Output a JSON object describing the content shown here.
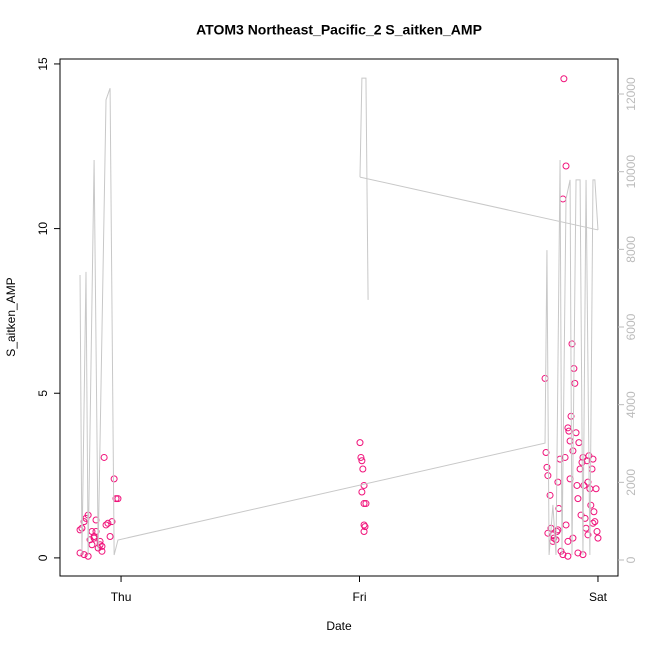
{
  "chart_data": {
    "type": "scatter",
    "title": "ATOM3 Northeast_Pacific_2 S_aitken_AMP",
    "x_label": "Date",
    "y_label": "S_aitken_AMP",
    "xlim": [
      -0.256,
      2.084
    ],
    "xticks": [
      {
        "value": 0,
        "label": "Thu"
      },
      {
        "value": 1,
        "label": "Fri"
      },
      {
        "value": 2,
        "label": "Sat"
      }
    ],
    "ylim": [
      -0.55,
      15.15
    ],
    "yticks": [
      0,
      5,
      10,
      15
    ],
    "y2lim": [
      -412,
      12902
    ],
    "y2ticks": [
      0,
      2000,
      4000,
      6000,
      8000,
      10000,
      12000
    ],
    "series": [
      {
        "color": "#f0127a",
        "x": [
          -0.172,
          -0.164,
          -0.155,
          -0.147,
          -0.138,
          -0.13,
          -0.122,
          -0.113,
          -0.105,
          -0.096,
          -0.088,
          -0.08,
          -0.071,
          -0.063,
          -0.055,
          -0.046,
          -0.038,
          -0.029,
          -0.021,
          -0.013,
          -0.172,
          -0.155,
          -0.138,
          -0.122,
          -0.105,
          -0.088,
          -0.08,
          -0.113,
          1.002,
          1.006,
          1.01,
          1.014,
          1.019,
          1.01,
          1.019,
          1.027,
          1.019,
          1.023,
          1.019,
          1.778,
          1.782,
          1.786,
          1.79,
          1.799,
          1.803,
          1.811,
          1.815,
          1.824,
          1.828,
          1.832,
          1.836,
          1.841,
          1.845,
          1.853,
          1.857,
          1.862,
          1.866,
          1.866,
          1.874,
          1.874,
          1.878,
          1.883,
          1.883,
          1.887,
          1.891,
          1.895,
          1.899,
          1.903,
          1.908,
          1.912,
          1.916,
          1.92,
          1.925,
          1.929,
          1.933,
          1.937,
          1.941,
          1.946,
          1.95,
          1.954,
          1.958,
          1.962,
          1.966,
          1.97,
          1.975,
          1.979,
          1.983,
          1.987,
          1.992,
          1.996,
          2.0,
          1.79,
          1.811,
          1.832,
          1.853,
          1.874,
          1.895,
          1.916,
          1.937,
          1.958,
          1.979
        ],
        "values": [
          0.85,
          0.9,
          1.1,
          1.2,
          1.3,
          0.55,
          0.4,
          0.65,
          1.15,
          0.3,
          0.4,
          0.2,
          3.05,
          1.0,
          1.05,
          0.65,
          1.1,
          2.4,
          1.8,
          1.8,
          0.15,
          0.1,
          0.05,
          0.8,
          0.8,
          0.5,
          0.35,
          0.6,
          3.5,
          3.05,
          2.95,
          2.7,
          2.2,
          2.0,
          1.65,
          1.65,
          1.0,
          0.95,
          0.8,
          5.45,
          3.2,
          2.75,
          2.5,
          1.9,
          0.9,
          0.7,
          0.6,
          0.55,
          0.8,
          2.3,
          1.5,
          3.0,
          0.2,
          10.9,
          14.55,
          3.05,
          11.9,
          1.0,
          0.5,
          3.95,
          3.85,
          3.55,
          2.4,
          4.3,
          6.5,
          3.25,
          5.75,
          5.3,
          3.8,
          2.2,
          1.8,
          3.5,
          2.7,
          1.3,
          2.9,
          3.05,
          2.2,
          1.2,
          0.9,
          2.95,
          2.3,
          3.1,
          2.1,
          1.6,
          2.7,
          3.0,
          1.4,
          1.1,
          2.1,
          0.8,
          0.6,
          0.75,
          0.5,
          0.85,
          0.1,
          0.05,
          0.6,
          0.15,
          0.1,
          0.7,
          1.05
        ]
      },
      {
        "color": "#c8c8c8",
        "axis": "y2",
        "line": true,
        "x": [
          -0.172,
          -0.164,
          -0.147,
          -0.138,
          -0.113,
          -0.096,
          -0.063,
          -0.046,
          -0.029,
          -0.013,
          1.778,
          1.786,
          1.795,
          1.811,
          1.824,
          1.841,
          1.849,
          1.866,
          1.883,
          1.891,
          1.908,
          1.925,
          1.937,
          1.95,
          1.966,
          1.979,
          1.987,
          2.0,
          null,
          1.002,
          1.01,
          1.027,
          1.036,
          null,
          1.002,
          2.0
        ],
        "values": [
          7340,
          130,
          7420,
          130,
          10300,
          260,
          11850,
          12150,
          130,
          515,
          3010,
          7980,
          130,
          1420,
          130,
          10300,
          130,
          9300,
          9790,
          130,
          9790,
          9790,
          130,
          9790,
          130,
          9790,
          9790,
          8500,
          null,
          9860,
          12410,
          12410,
          6700,
          null,
          9860,
          8500
        ]
      }
    ]
  }
}
